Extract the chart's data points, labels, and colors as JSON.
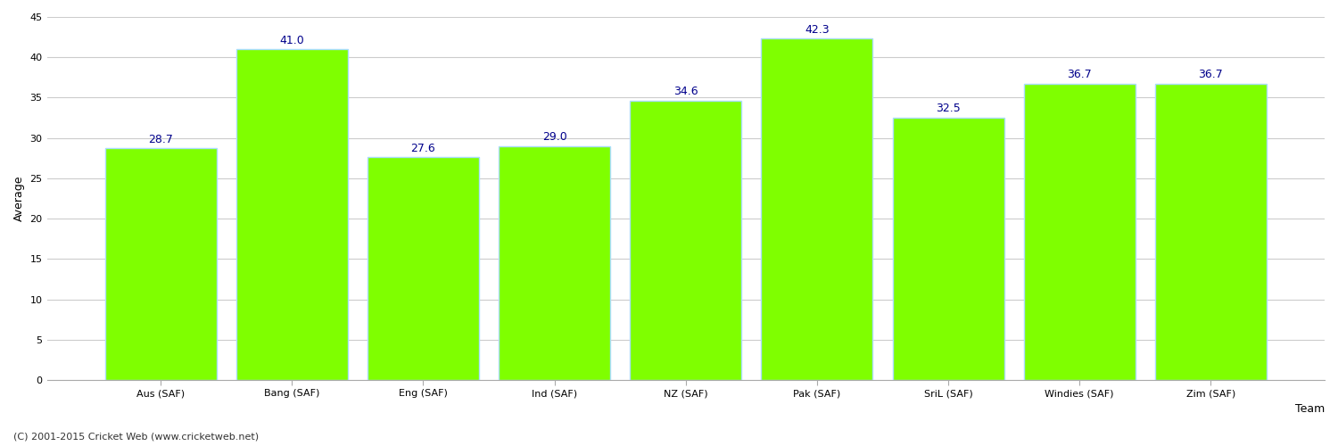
{
  "categories": [
    "Aus (SAF)",
    "Bang (SAF)",
    "Eng (SAF)",
    "Ind (SAF)",
    "NZ (SAF)",
    "Pak (SAF)",
    "SriL (SAF)",
    "Windies (SAF)",
    "Zim (SAF)"
  ],
  "values": [
    28.7,
    41.0,
    27.6,
    29.0,
    34.6,
    42.3,
    32.5,
    36.7,
    36.7
  ],
  "bar_color": "#7FFF00",
  "bar_edge_color": "#aaddff",
  "xlabel": "Team",
  "ylabel": "Average",
  "ylim": [
    0,
    45
  ],
  "yticks": [
    0,
    5,
    10,
    15,
    20,
    25,
    30,
    35,
    40,
    45
  ],
  "label_color": "#00008B",
  "label_fontsize": 9,
  "axis_label_fontsize": 9,
  "tick_fontsize": 8,
  "background_color": "#ffffff",
  "grid_color": "#cccccc",
  "footer_text": "(C) 2001-2015 Cricket Web (www.cricketweb.net)",
  "footer_fontsize": 8,
  "footer_color": "#333333"
}
